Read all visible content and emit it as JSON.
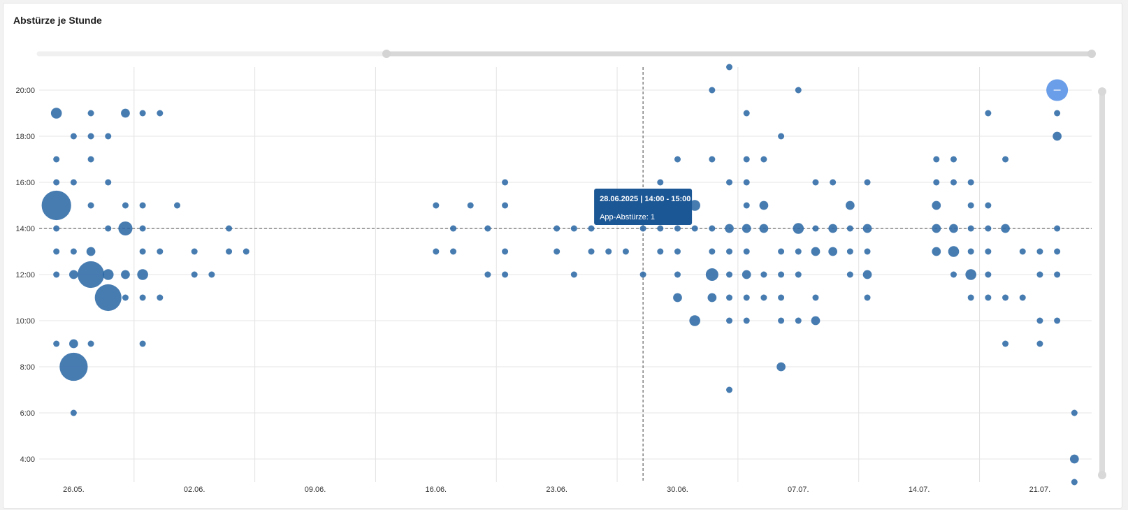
{
  "card": {
    "title": "Abstürze je Stunde"
  },
  "tooltip": {
    "title": "28.06.2025 | 14:00 - 15:00",
    "value_line": "App-Abstürze: 1"
  },
  "slider": {
    "range_start_fraction": 0.33,
    "range_end_fraction": 1.0
  },
  "chart_data": {
    "type": "scatter",
    "title": "Abstürze je Stunde",
    "xlabel": "",
    "ylabel": "",
    "x_ticks": [
      "26.05.",
      "02.06.",
      "09.06.",
      "16.06.",
      "23.06.",
      "30.06.",
      "07.07.",
      "14.07.",
      "21.07."
    ],
    "y_ticks": [
      "4:00",
      "6:00",
      "8:00",
      "10:00",
      "12:00",
      "14:00",
      "16:00",
      "18:00",
      "20:00"
    ],
    "xlim": [
      "2025-05-24",
      "2025-07-24"
    ],
    "ylim": [
      3,
      21
    ],
    "grid": true,
    "crosshair": {
      "x": "2025-06-28",
      "y": 14
    },
    "colors": {
      "bubble": "#2e6aa6",
      "highlight": "#6b9ee8",
      "tooltip": "#1c5795"
    },
    "series": [
      {
        "points": [
          [
            "2025-05-25",
            19,
            3
          ],
          [
            "2025-05-25",
            17,
            1
          ],
          [
            "2025-05-25",
            16,
            1
          ],
          [
            "2025-05-25",
            15,
            22
          ],
          [
            "2025-05-25",
            14,
            1
          ],
          [
            "2025-05-25",
            13,
            1
          ],
          [
            "2025-05-25",
            12,
            1
          ],
          [
            "2025-05-25",
            9,
            1
          ],
          [
            "2025-05-26",
            18,
            1
          ],
          [
            "2025-05-26",
            16,
            1
          ],
          [
            "2025-05-26",
            13,
            1
          ],
          [
            "2025-05-26",
            12,
            2
          ],
          [
            "2025-05-26",
            9,
            2
          ],
          [
            "2025-05-26",
            8,
            20
          ],
          [
            "2025-05-26",
            6,
            1
          ],
          [
            "2025-05-27",
            19,
            1
          ],
          [
            "2025-05-27",
            18,
            1
          ],
          [
            "2025-05-27",
            17,
            1
          ],
          [
            "2025-05-27",
            15,
            1
          ],
          [
            "2025-05-27",
            13,
            2
          ],
          [
            "2025-05-27",
            12,
            18
          ],
          [
            "2025-05-27",
            9,
            1
          ],
          [
            "2025-05-28",
            18,
            1
          ],
          [
            "2025-05-28",
            16,
            1
          ],
          [
            "2025-05-28",
            14,
            1
          ],
          [
            "2025-05-28",
            12,
            3
          ],
          [
            "2025-05-28",
            11,
            18
          ],
          [
            "2025-05-29",
            19,
            2
          ],
          [
            "2025-05-29",
            15,
            1
          ],
          [
            "2025-05-29",
            14,
            5
          ],
          [
            "2025-05-29",
            12,
            2
          ],
          [
            "2025-05-29",
            11,
            1
          ],
          [
            "2025-05-30",
            19,
            1
          ],
          [
            "2025-05-30",
            15,
            1
          ],
          [
            "2025-05-30",
            14,
            1
          ],
          [
            "2025-05-30",
            13,
            1
          ],
          [
            "2025-05-30",
            12,
            3
          ],
          [
            "2025-05-30",
            11,
            1
          ],
          [
            "2025-05-30",
            9,
            1
          ],
          [
            "2025-05-31",
            19,
            1
          ],
          [
            "2025-05-31",
            13,
            1
          ],
          [
            "2025-05-31",
            11,
            1
          ],
          [
            "2025-06-01",
            15,
            1
          ],
          [
            "2025-06-02",
            13,
            1
          ],
          [
            "2025-06-02",
            12,
            1
          ],
          [
            "2025-06-03",
            12,
            1
          ],
          [
            "2025-06-04",
            14,
            1
          ],
          [
            "2025-06-04",
            13,
            1
          ],
          [
            "2025-06-05",
            13,
            1
          ],
          [
            "2025-06-16",
            15,
            1
          ],
          [
            "2025-06-16",
            13,
            1
          ],
          [
            "2025-06-17",
            14,
            1
          ],
          [
            "2025-06-17",
            13,
            1
          ],
          [
            "2025-06-18",
            15,
            1
          ],
          [
            "2025-06-19",
            14,
            1
          ],
          [
            "2025-06-19",
            12,
            1
          ],
          [
            "2025-06-20",
            16,
            1
          ],
          [
            "2025-06-20",
            15,
            1
          ],
          [
            "2025-06-20",
            13,
            1
          ],
          [
            "2025-06-20",
            12,
            1
          ],
          [
            "2025-06-23",
            14,
            1
          ],
          [
            "2025-06-23",
            13,
            1
          ],
          [
            "2025-06-24",
            14,
            1
          ],
          [
            "2025-06-24",
            12,
            1
          ],
          [
            "2025-06-25",
            14,
            1
          ],
          [
            "2025-06-25",
            13,
            1
          ],
          [
            "2025-06-26",
            13,
            1
          ],
          [
            "2025-06-27",
            13,
            1
          ],
          [
            "2025-06-28",
            14,
            1
          ],
          [
            "2025-06-28",
            12,
            1
          ],
          [
            "2025-06-29",
            16,
            1
          ],
          [
            "2025-06-29",
            14,
            1
          ],
          [
            "2025-06-29",
            13,
            1
          ],
          [
            "2025-06-30",
            17,
            1
          ],
          [
            "2025-06-30",
            14,
            1
          ],
          [
            "2025-06-30",
            13,
            1
          ],
          [
            "2025-06-30",
            12,
            1
          ],
          [
            "2025-06-30",
            11,
            2
          ],
          [
            "2025-07-01",
            15,
            3
          ],
          [
            "2025-07-01",
            14,
            1
          ],
          [
            "2025-07-01",
            10,
            3
          ],
          [
            "2025-07-02",
            20,
            1
          ],
          [
            "2025-07-02",
            17,
            1
          ],
          [
            "2025-07-02",
            14,
            1
          ],
          [
            "2025-07-02",
            13,
            1
          ],
          [
            "2025-07-02",
            12,
            4
          ],
          [
            "2025-07-02",
            11,
            2
          ],
          [
            "2025-07-03",
            21,
            1
          ],
          [
            "2025-07-03",
            16,
            1
          ],
          [
            "2025-07-03",
            14,
            2
          ],
          [
            "2025-07-03",
            13,
            1
          ],
          [
            "2025-07-03",
            12,
            1
          ],
          [
            "2025-07-03",
            11,
            1
          ],
          [
            "2025-07-03",
            10,
            1
          ],
          [
            "2025-07-03",
            7,
            1
          ],
          [
            "2025-07-04",
            19,
            1
          ],
          [
            "2025-07-04",
            17,
            1
          ],
          [
            "2025-07-04",
            16,
            1
          ],
          [
            "2025-07-04",
            15,
            1
          ],
          [
            "2025-07-04",
            14,
            2
          ],
          [
            "2025-07-04",
            13,
            1
          ],
          [
            "2025-07-04",
            12,
            2
          ],
          [
            "2025-07-04",
            11,
            1
          ],
          [
            "2025-07-04",
            10,
            1
          ],
          [
            "2025-07-05",
            17,
            1
          ],
          [
            "2025-07-05",
            15,
            2
          ],
          [
            "2025-07-05",
            14,
            2
          ],
          [
            "2025-07-05",
            12,
            1
          ],
          [
            "2025-07-05",
            11,
            1
          ],
          [
            "2025-07-06",
            18,
            1
          ],
          [
            "2025-07-06",
            13,
            1
          ],
          [
            "2025-07-06",
            12,
            1
          ],
          [
            "2025-07-06",
            11,
            1
          ],
          [
            "2025-07-06",
            10,
            1
          ],
          [
            "2025-07-06",
            8,
            2
          ],
          [
            "2025-07-07",
            20,
            1
          ],
          [
            "2025-07-07",
            14,
            3
          ],
          [
            "2025-07-07",
            13,
            1
          ],
          [
            "2025-07-07",
            12,
            1
          ],
          [
            "2025-07-07",
            10,
            1
          ],
          [
            "2025-07-08",
            16,
            1
          ],
          [
            "2025-07-08",
            14,
            1
          ],
          [
            "2025-07-08",
            13,
            2
          ],
          [
            "2025-07-08",
            11,
            1
          ],
          [
            "2025-07-08",
            10,
            2
          ],
          [
            "2025-07-09",
            16,
            1
          ],
          [
            "2025-07-09",
            14,
            2
          ],
          [
            "2025-07-09",
            13,
            2
          ],
          [
            "2025-07-10",
            15,
            2
          ],
          [
            "2025-07-10",
            14,
            1
          ],
          [
            "2025-07-10",
            13,
            1
          ],
          [
            "2025-07-10",
            12,
            1
          ],
          [
            "2025-07-11",
            16,
            1
          ],
          [
            "2025-07-11",
            14,
            2
          ],
          [
            "2025-07-11",
            13,
            1
          ],
          [
            "2025-07-11",
            12,
            2
          ],
          [
            "2025-07-11",
            11,
            1
          ],
          [
            "2025-07-15",
            17,
            1
          ],
          [
            "2025-07-15",
            16,
            1
          ],
          [
            "2025-07-15",
            15,
            2
          ],
          [
            "2025-07-15",
            14,
            2
          ],
          [
            "2025-07-15",
            13,
            2
          ],
          [
            "2025-07-16",
            17,
            1
          ],
          [
            "2025-07-16",
            16,
            1
          ],
          [
            "2025-07-16",
            14,
            2
          ],
          [
            "2025-07-16",
            13,
            3
          ],
          [
            "2025-07-16",
            12,
            1
          ],
          [
            "2025-07-17",
            16,
            1
          ],
          [
            "2025-07-17",
            15,
            1
          ],
          [
            "2025-07-17",
            14,
            1
          ],
          [
            "2025-07-17",
            13,
            1
          ],
          [
            "2025-07-17",
            12,
            3
          ],
          [
            "2025-07-17",
            11,
            1
          ],
          [
            "2025-07-18",
            19,
            1
          ],
          [
            "2025-07-18",
            15,
            1
          ],
          [
            "2025-07-18",
            14,
            1
          ],
          [
            "2025-07-18",
            13,
            1
          ],
          [
            "2025-07-18",
            12,
            1
          ],
          [
            "2025-07-18",
            11,
            1
          ],
          [
            "2025-07-19",
            17,
            1
          ],
          [
            "2025-07-19",
            14,
            2
          ],
          [
            "2025-07-19",
            11,
            1
          ],
          [
            "2025-07-19",
            9,
            1
          ],
          [
            "2025-07-20",
            13,
            1
          ],
          [
            "2025-07-20",
            11,
            1
          ],
          [
            "2025-07-21",
            13,
            1
          ],
          [
            "2025-07-21",
            12,
            1
          ],
          [
            "2025-07-21",
            10,
            1
          ],
          [
            "2025-07-21",
            9,
            1
          ],
          [
            "2025-07-22",
            20,
            5
          ],
          [
            "2025-07-22",
            19,
            1
          ],
          [
            "2025-07-22",
            18,
            2
          ],
          [
            "2025-07-22",
            14,
            1
          ],
          [
            "2025-07-22",
            13,
            1
          ],
          [
            "2025-07-22",
            12,
            1
          ],
          [
            "2025-07-22",
            10,
            1
          ],
          [
            "2025-07-23",
            6,
            1
          ],
          [
            "2025-07-23",
            4,
            2
          ],
          [
            "2025-07-23",
            3,
            1
          ]
        ]
      }
    ]
  }
}
